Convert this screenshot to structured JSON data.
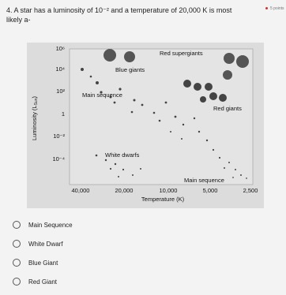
{
  "question": {
    "text": "4. A star has a luminosity of 10⁻² and a temperature of 20,000 K is most likely a-",
    "points": "5 points"
  },
  "diagram": {
    "regions": [
      "Red supergiants",
      "Blue giants",
      "Main sequence",
      "Red giants",
      "White dwarfs",
      "Main sequence"
    ],
    "y_label": {
      "text": "Luminosity (L",
      "sub": "Sun",
      "end": ")"
    },
    "y_ticks": [
      "10⁶",
      "10⁴",
      "10²",
      "1",
      "10⁻²",
      "10⁻⁴"
    ],
    "x_ticks": [
      "40,000",
      "20,000",
      "10,000",
      "5,000",
      "2,500"
    ],
    "x_label": "Temperature (K)"
  },
  "options": [
    "Main Sequence",
    "White Dwarf",
    "Blue Giant",
    "Red Giant"
  ]
}
